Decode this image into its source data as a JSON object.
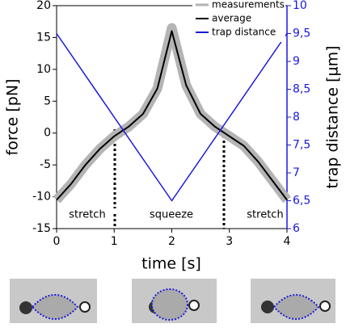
{
  "chart_data": {
    "type": "line",
    "xlabel": "time [s]",
    "ylabel": "force [pN]",
    "y2label": "trap distance [µm]",
    "x": [
      0,
      0.25,
      0.5,
      0.75,
      1,
      1.25,
      1.5,
      1.75,
      2,
      2.25,
      2.5,
      2.75,
      3,
      3.25,
      3.5,
      3.75,
      4
    ],
    "series": [
      {
        "name": "measurements",
        "color": "#b4b4b4",
        "values": [
          -10.5,
          -8,
          -5,
          -2.5,
          -0.5,
          1,
          3,
          7,
          16.5,
          7.5,
          3,
          1,
          -0.5,
          -2,
          -4.5,
          -7.5,
          -10.5
        ]
      },
      {
        "name": "average",
        "color": "#000000",
        "values": [
          -10.5,
          -8,
          -5,
          -2.5,
          -0.5,
          1,
          3,
          7,
          16,
          7.5,
          3,
          1,
          -0.5,
          -2,
          -4.5,
          -7.5,
          -10.5
        ]
      },
      {
        "name": "trap distance",
        "color": "#1a1adb",
        "axis": "y2",
        "x": [
          0,
          2,
          4
        ],
        "values": [
          9.5,
          6.5,
          9.5
        ]
      }
    ],
    "xlim": [
      0,
      4
    ],
    "xticks": [
      0,
      1,
      2,
      3,
      4
    ],
    "ylim": [
      -15,
      20
    ],
    "yticks": [
      -15,
      -10,
      -5,
      0,
      5,
      10,
      15,
      20
    ],
    "y2lim": [
      6,
      10
    ],
    "y2ticks": [
      6,
      {
        "value": 6.5,
        "label": "6,5"
      },
      7,
      {
        "value": 7.5,
        "label": "7,5"
      },
      8,
      {
        "value": 8.5,
        "label": "8,5"
      },
      9,
      {
        "value": 9.5,
        "label": "9,5"
      },
      10
    ],
    "legend": "upper right",
    "annotations": [
      "stretch",
      "squeeze",
      "stretch"
    ]
  }
}
